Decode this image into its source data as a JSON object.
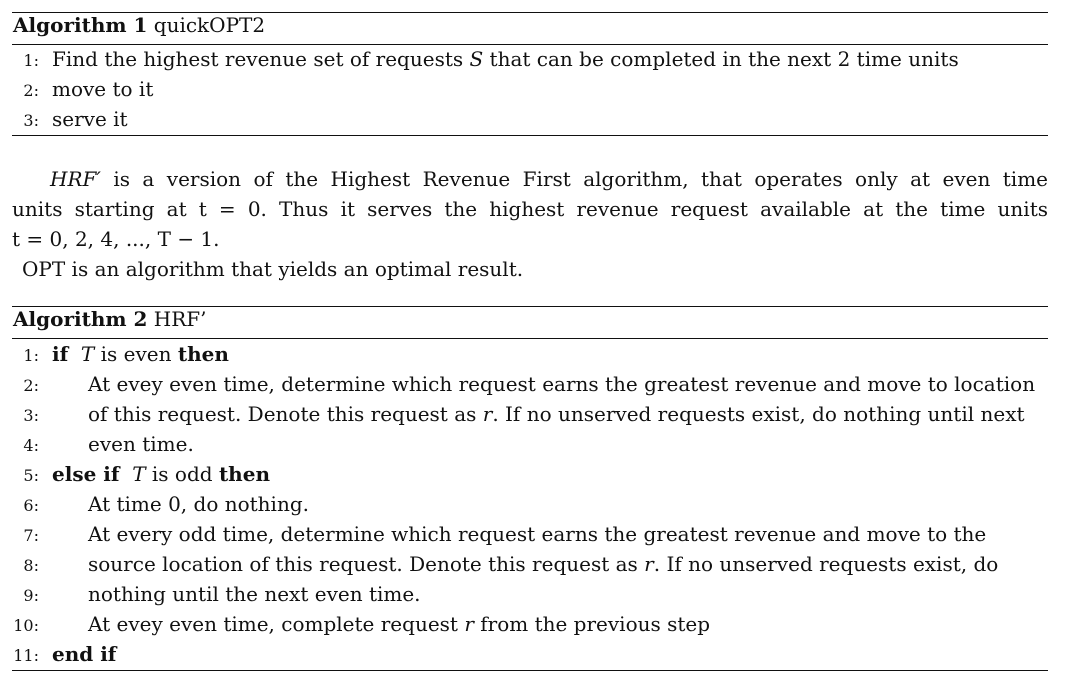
{
  "algorithm1": {
    "label": "Algorithm 1",
    "name": "quickOPT2",
    "lines": [
      {
        "num": "1:",
        "parts": [
          "Find the highest revenue set of requests ",
          "S",
          " that can be completed in the next 2 time units"
        ]
      },
      {
        "num": "2:",
        "text": "move to it"
      },
      {
        "num": "3:",
        "text": "serve it"
      }
    ]
  },
  "paragraph": {
    "line1": {
      "name": "HRF′",
      "rest": " is a version of the Highest Revenue First algorithm, that operates only at even time"
    },
    "line2": "units starting at t = 0.  Thus it serves the highest revenue request available at the time units",
    "line3": "t = 0, 2, 4, ..., T − 1.",
    "line4": "OPT is an algorithm that yields an optimal result."
  },
  "algorithm2": {
    "label": "Algorithm 2",
    "name": "HRF’",
    "lines": [
      {
        "num": "1:",
        "kw1": "if",
        "var": "T",
        "mid": " is even ",
        "kw2": "then"
      },
      {
        "num": "2:",
        "text": "At evey even time, determine which request earns the greatest revenue and move to location"
      },
      {
        "num": "3:",
        "pre": "of this request. Denote this request as ",
        "var": "r",
        "post": ". If no unserved requests exist, do nothing until next"
      },
      {
        "num": "4:",
        "text": "even time."
      },
      {
        "num": "5:",
        "kw1": "else if",
        "var": "T",
        "mid": " is odd ",
        "kw2": "then"
      },
      {
        "num": "6:",
        "text": "At time 0, do nothing."
      },
      {
        "num": "7:",
        "text": "At every odd time, determine which request earns the greatest revenue and move to the"
      },
      {
        "num": "8:",
        "pre": "source location of this request. Denote this request as ",
        "var": "r",
        "post": ". If no unserved requests exist, do"
      },
      {
        "num": "9:",
        "text": "nothing until the next even time."
      },
      {
        "num": "10:",
        "pre": "At evey even time, complete request ",
        "var": "r",
        "post": " from the previous step"
      },
      {
        "num": "11:",
        "kw1": "end if"
      }
    ]
  }
}
